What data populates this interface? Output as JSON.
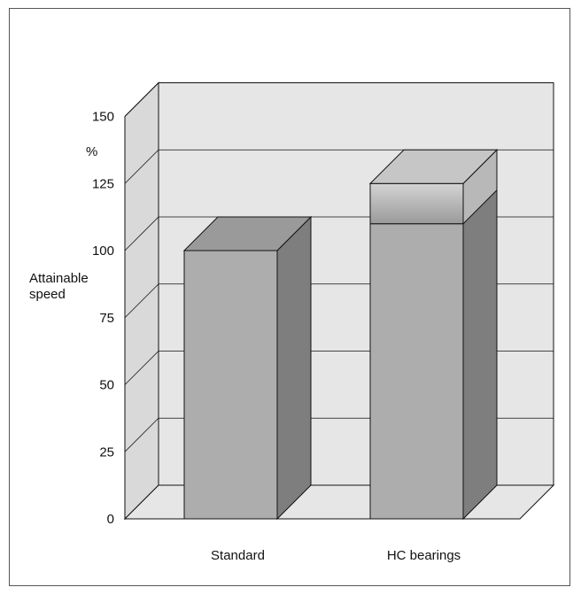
{
  "chart_data": {
    "type": "bar",
    "ylabel_lines": [
      "Attainable",
      "speed"
    ],
    "yunit": "%",
    "categories": [
      "Standard",
      "HC bearings"
    ],
    "values": [
      100,
      110
    ],
    "stacked_top": [
      0,
      15
    ],
    "total": [
      100,
      125
    ],
    "ylim": [
      0,
      150
    ],
    "yticks": [
      0,
      25,
      50,
      75,
      100,
      125,
      150
    ],
    "grid": true,
    "three_d": true,
    "colors": {
      "wall": "#e6e6e6",
      "floor": "#e6e6e6",
      "side_wall": "#d9d9d9",
      "bar_front": "#adadad",
      "bar_side": "#7e7e7e",
      "bar_top": "#9a9a9a",
      "extra_front_light": "#d4d4d4",
      "extra_front_dark": "#9a9a9a",
      "extra_side": "#b8b8b8",
      "extra_top": "#c6c6c6"
    }
  }
}
